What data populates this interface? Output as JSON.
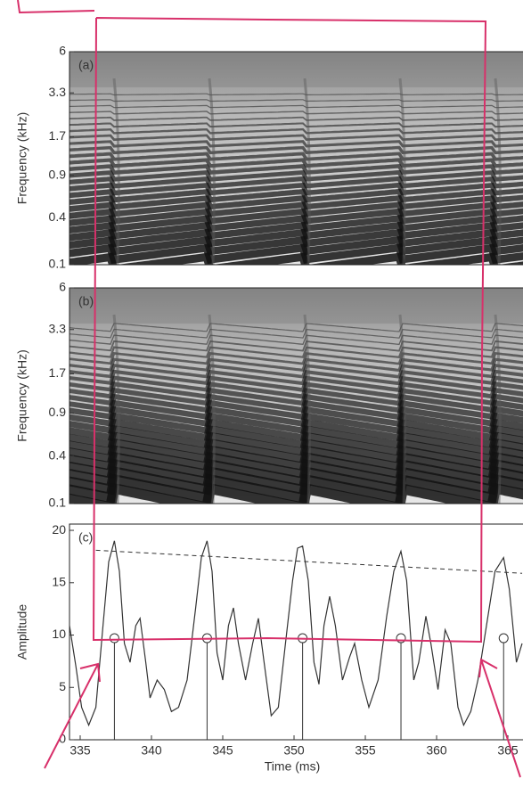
{
  "chart_data": [
    {
      "type": "spectrogram",
      "label": "(a)",
      "ylabel": "Frequency (kHz)",
      "yscale": "erb",
      "ylim": [
        0.1,
        6
      ],
      "yticks": [
        6,
        3.3,
        1.7,
        0.9,
        0.4,
        0.1
      ],
      "xlim": [
        334.25,
        366.06
      ]
    },
    {
      "type": "spectrogram",
      "label": "(b)",
      "ylabel": "Frequency (kHz)",
      "yscale": "erb",
      "ylim": [
        0.1,
        6
      ],
      "yticks": [
        6,
        3.3,
        1.7,
        0.9,
        0.4,
        0.1
      ],
      "xlim": [
        334.25,
        366.06
      ]
    },
    {
      "type": "line",
      "label": "(c)",
      "ylabel": "Amplitude",
      "xlabel": "Time (ms)",
      "xlim": [
        334.25,
        366.06
      ],
      "xticks": [
        335,
        340,
        345,
        350,
        355,
        360,
        365
      ],
      "ylim": [
        0,
        20.6
      ],
      "yticks": [
        0,
        5,
        10,
        15,
        20
      ],
      "color": "#333333",
      "x": [
        334.25,
        334.7,
        335.1,
        335.6,
        336.1,
        336.6,
        337.0,
        337.4,
        337.75,
        338.1,
        338.5,
        338.9,
        339.2,
        339.6,
        339.9,
        340.4,
        340.9,
        341.4,
        341.9,
        342.5,
        343.1,
        343.5,
        343.9,
        344.25,
        344.6,
        345.0,
        345.4,
        345.75,
        346.1,
        346.6,
        347.1,
        347.5,
        347.9,
        348.4,
        348.9,
        349.4,
        349.9,
        350.25,
        350.6,
        351.0,
        351.4,
        351.75,
        352.1,
        352.5,
        352.9,
        353.4,
        353.9,
        354.25,
        354.75,
        355.25,
        355.9,
        356.5,
        357.0,
        357.5,
        357.9,
        358.4,
        358.75,
        359.25,
        359.6,
        360.1,
        360.6,
        361.0,
        361.5,
        361.9,
        362.4,
        362.9,
        363.5,
        364.1,
        364.7,
        365.1,
        365.6,
        366.0
      ],
      "values": [
        10.9,
        7.0,
        3.1,
        1.4,
        3.1,
        10.9,
        17.0,
        19.0,
        16.1,
        9.2,
        7.4,
        10.9,
        11.6,
        7.4,
        4.0,
        5.7,
        4.8,
        2.7,
        3.1,
        5.7,
        12.6,
        17.4,
        19.0,
        16.1,
        8.3,
        5.7,
        10.9,
        12.6,
        9.2,
        5.7,
        9.2,
        11.6,
        7.4,
        2.3,
        3.1,
        9.2,
        15.2,
        18.3,
        18.5,
        15.2,
        7.4,
        5.3,
        10.9,
        13.7,
        10.9,
        5.7,
        7.9,
        9.2,
        5.7,
        3.1,
        5.7,
        11.8,
        16.1,
        18.0,
        15.2,
        5.7,
        7.4,
        11.8,
        9.2,
        4.8,
        10.5,
        9.2,
        3.1,
        1.4,
        2.7,
        5.7,
        10.9,
        16.1,
        17.4,
        14.4,
        7.4,
        9.2
      ],
      "envelope": {
        "x": [
          336.1,
          366.0
        ],
        "values": [
          18.1,
          15.9
        ]
      },
      "markers": {
        "x": [
          337.4,
          343.9,
          350.6,
          357.5,
          364.7
        ],
        "values": [
          9.7,
          9.7,
          9.7,
          9.7,
          9.7
        ]
      }
    }
  ]
}
